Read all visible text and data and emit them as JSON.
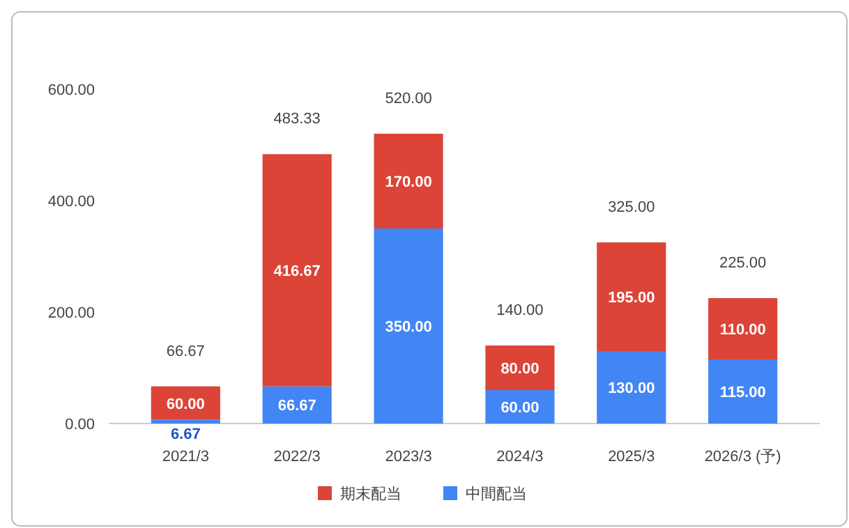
{
  "chart_data": {
    "type": "bar",
    "stacked": true,
    "categories": [
      "2021/3",
      "2022/3",
      "2023/3",
      "2024/3",
      "2025/3",
      "2026/3 (予)"
    ],
    "series": [
      {
        "name": "中間配当",
        "color": "#4285f4",
        "values": [
          6.67,
          66.67,
          350,
          60,
          130,
          115
        ],
        "value_labels": [
          "6.67",
          "66.67",
          "350.00",
          "60.00",
          "130.00",
          "115.00"
        ]
      },
      {
        "name": "期末配当",
        "color": "#db4437",
        "values": [
          60,
          416.67,
          170,
          80,
          195,
          110
        ],
        "value_labels": [
          "60.00",
          "416.67",
          "170.00",
          "80.00",
          "195.00",
          "110.00"
        ]
      }
    ],
    "totals": [
      "66.67",
      "483.33",
      "520.00",
      "140.00",
      "325.00",
      "225.00"
    ],
    "ylim": [
      0,
      600
    ],
    "yticks": [
      {
        "value": 0,
        "label": "0.00"
      },
      {
        "value": 200,
        "label": "200.00"
      },
      {
        "value": 400,
        "label": "400.00"
      },
      {
        "value": 600,
        "label": "600.00"
      }
    ],
    "legend": "bottom"
  }
}
